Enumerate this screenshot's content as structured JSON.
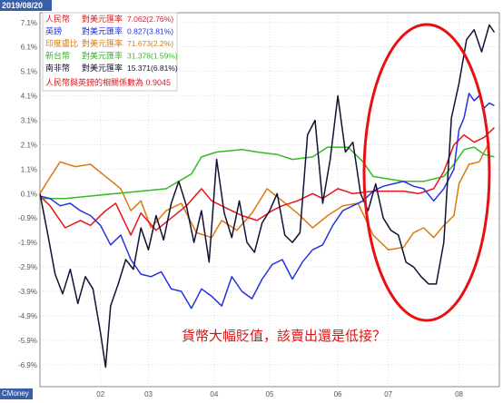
{
  "header": {
    "date": "2019/08/20"
  },
  "footer": {
    "brand": "CMoney"
  },
  "legend": {
    "rows": [
      {
        "name": "人民幣",
        "label": "對美元匯率",
        "value": "7.062(2.76%)",
        "color": "#e8141c"
      },
      {
        "name": "英鎊",
        "label": "對美元匯率",
        "value": "0.827(3.81%)",
        "color": "#2233dd"
      },
      {
        "name": "印度盧比",
        "label": "對美元匯率",
        "value": "71.673(2.2%)",
        "color": "#d87a10"
      },
      {
        "name": "新台幣",
        "label": "對美元匯率",
        "value": "31.378(1.59%)",
        "color": "#33bb22"
      },
      {
        "name": "南非幣",
        "label": "對美元匯率",
        "value": "15.371(6.81%)",
        "color": "#111133"
      }
    ],
    "corr": "人民幣與英鎊的相關係數為 0.9045",
    "corr_color": "#e8141c"
  },
  "annotation": {
    "text": "貨幣大幅貶值，該賣出還是低接？",
    "color": "#dd1111"
  },
  "chart_data": {
    "type": "line",
    "xlabel": "",
    "ylabel": "",
    "x_ticks": [
      "02",
      "03",
      "04",
      "05",
      "06",
      "07",
      "08"
    ],
    "x_tick_pos": [
      1.4,
      2.35,
      3.65,
      4.75,
      6.1,
      7.1,
      8.5
    ],
    "x_range": [
      0.2,
      9.3
    ],
    "ylim": [
      -7.8,
      7.5
    ],
    "y_ticks": [
      "7.1%",
      "6.1%",
      "5.1%",
      "4.1%",
      "3.1%",
      "2.1%",
      "1.1%",
      "0.1%",
      "-0.9%",
      "-1.9%",
      "-2.9%",
      "-3.9%",
      "-4.9%",
      "-5.9%",
      "-6.9%"
    ],
    "y_tick_values": [
      7.1,
      6.1,
      5.1,
      4.1,
      3.1,
      2.1,
      1.1,
      0.1,
      -0.9,
      -1.9,
      -2.9,
      -3.9,
      -4.9,
      -5.9,
      -6.9
    ],
    "grid": true,
    "series": [
      {
        "name": "新台幣",
        "color": "#33bb22",
        "x": [
          0.2,
          0.7,
          1.2,
          1.7,
          2.2,
          2.7,
          3.2,
          3.4,
          3.7,
          4.2,
          4.5,
          4.9,
          5.2,
          5.6,
          5.9,
          6.3,
          6.6,
          6.8,
          7.1,
          7.4,
          7.8,
          8.2,
          8.4,
          8.6,
          8.8,
          9.0,
          9.2
        ],
        "y": [
          -0.1,
          -0.1,
          0.0,
          0.1,
          0.2,
          0.3,
          0.9,
          1.6,
          1.8,
          1.9,
          1.8,
          1.7,
          1.5,
          1.6,
          2.0,
          2.0,
          1.4,
          0.8,
          0.7,
          0.6,
          0.6,
          0.8,
          1.3,
          1.9,
          2.0,
          1.7,
          1.6
        ]
      },
      {
        "name": "印度盧比",
        "color": "#d87a10",
        "x": [
          0.2,
          0.35,
          0.6,
          0.9,
          1.2,
          1.5,
          1.8,
          2.0,
          2.2,
          2.4,
          2.7,
          3.0,
          3.3,
          3.6,
          3.8,
          4.1,
          4.4,
          4.7,
          5.0,
          5.3,
          5.6,
          5.9,
          6.2,
          6.5,
          6.8,
          7.1,
          7.4,
          7.6,
          7.8,
          8.0,
          8.2,
          8.4,
          8.5,
          8.7,
          8.9,
          9.1
        ],
        "y": [
          0.1,
          0.6,
          1.4,
          1.2,
          1.3,
          0.8,
          0.3,
          -0.6,
          -0.2,
          -1.3,
          -0.6,
          -0.3,
          -1.5,
          -1.7,
          -1.0,
          -1.4,
          -0.7,
          0.3,
          -0.2,
          -0.7,
          -1.3,
          -0.8,
          -0.4,
          -0.3,
          -1.6,
          -2.2,
          -2.1,
          -1.5,
          -1.3,
          -1.7,
          -1.2,
          -0.8,
          0.5,
          1.3,
          1.4,
          2.2
        ]
      },
      {
        "name": "人民幣",
        "color": "#e8141c",
        "x": [
          0.2,
          0.4,
          0.7,
          1.0,
          1.2,
          1.5,
          1.7,
          2.0,
          2.2,
          2.5,
          2.8,
          3.1,
          3.4,
          3.6,
          3.9,
          4.2,
          4.5,
          4.8,
          5.0,
          5.3,
          5.6,
          5.8,
          6.1,
          6.4,
          6.8,
          7.1,
          7.4,
          7.7,
          8.0,
          8.2,
          8.4,
          8.6,
          8.8,
          9.0,
          9.2
        ],
        "y": [
          0.0,
          -0.4,
          -1.3,
          -1.0,
          -1.2,
          -0.6,
          -0.3,
          -1.6,
          -0.7,
          -1.4,
          -0.9,
          -0.4,
          0.3,
          -0.2,
          -0.5,
          -0.8,
          -1.0,
          -0.6,
          -0.4,
          -0.2,
          0.1,
          -0.1,
          0.3,
          0.1,
          0.2,
          0.2,
          0.2,
          0.1,
          0.3,
          1.0,
          2.1,
          2.5,
          2.2,
          2.4,
          2.8
        ]
      },
      {
        "name": "英鎊",
        "color": "#2233dd",
        "x": [
          0.2,
          0.4,
          0.6,
          0.8,
          1.0,
          1.2,
          1.4,
          1.6,
          1.8,
          2.0,
          2.2,
          2.4,
          2.6,
          2.8,
          3.0,
          3.2,
          3.4,
          3.6,
          3.8,
          4.0,
          4.2,
          4.4,
          4.6,
          4.8,
          5.0,
          5.2,
          5.4,
          5.6,
          5.8,
          6.0,
          6.2,
          6.4,
          6.6,
          6.8,
          7.0,
          7.2,
          7.4,
          7.6,
          7.8,
          8.0,
          8.2,
          8.4,
          8.5,
          8.6,
          8.7,
          8.8,
          8.9,
          9.0,
          9.1,
          9.2
        ],
        "y": [
          0.0,
          -0.1,
          -0.4,
          -0.3,
          -0.6,
          -0.8,
          -1.2,
          -2.0,
          -1.6,
          -2.6,
          -3.2,
          -3.3,
          -3.1,
          -3.8,
          -3.9,
          -4.6,
          -3.8,
          -4.1,
          -4.5,
          -3.3,
          -3.9,
          -4.2,
          -3.4,
          -2.8,
          -2.6,
          -3.4,
          -2.7,
          -2.2,
          -2.0,
          -1.2,
          -0.6,
          -0.4,
          -0.2,
          0.2,
          0.4,
          0.5,
          0.6,
          0.4,
          0.3,
          -0.2,
          0.3,
          1.1,
          2.7,
          3.2,
          4.2,
          3.9,
          4.1,
          3.6,
          3.8,
          3.7
        ]
      },
      {
        "name": "南非幣",
        "color": "#111133",
        "x": [
          0.2,
          0.35,
          0.5,
          0.65,
          0.8,
          0.95,
          1.1,
          1.25,
          1.4,
          1.5,
          1.6,
          1.75,
          1.9,
          2.05,
          2.2,
          2.35,
          2.5,
          2.65,
          2.8,
          2.95,
          3.1,
          3.25,
          3.4,
          3.55,
          3.7,
          3.85,
          4.0,
          4.15,
          4.3,
          4.45,
          4.6,
          4.75,
          4.9,
          5.05,
          5.2,
          5.35,
          5.5,
          5.65,
          5.8,
          5.95,
          6.1,
          6.25,
          6.4,
          6.55,
          6.7,
          6.85,
          7.0,
          7.15,
          7.3,
          7.45,
          7.6,
          7.75,
          7.9,
          8.05,
          8.2,
          8.35,
          8.5,
          8.65,
          8.8,
          8.95,
          9.1,
          9.2
        ],
        "y": [
          0.1,
          -1.5,
          -3.2,
          -4.0,
          -3.0,
          -4.4,
          -3.3,
          -3.8,
          -5.6,
          -7.0,
          -4.5,
          -3.6,
          -2.6,
          -3.0,
          -1.3,
          -2.2,
          -0.8,
          -1.8,
          -0.3,
          0.6,
          -0.4,
          -1.9,
          -0.6,
          -2.7,
          1.5,
          -0.7,
          -1.7,
          -0.2,
          -1.9,
          -2.3,
          -1.1,
          -0.6,
          0.1,
          -1.6,
          -1.9,
          -1.5,
          2.5,
          3.1,
          -0.3,
          1.5,
          4.1,
          1.8,
          2.2,
          0.1,
          -0.6,
          0.5,
          -0.9,
          -1.4,
          -1.6,
          -2.7,
          -2.9,
          -3.3,
          -3.6,
          -3.6,
          -1.9,
          3.2,
          4.6,
          6.4,
          6.8,
          5.9,
          7.0,
          6.7
        ]
      }
    ]
  }
}
